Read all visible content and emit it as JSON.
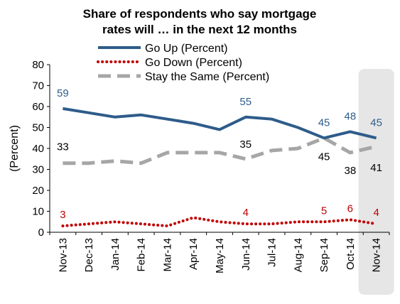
{
  "chart_data": {
    "type": "line",
    "title_lines": [
      "Share of respondents who say mortgage",
      "rates will … in the next 12 months"
    ],
    "ylabel": "(Percent)",
    "ylim": [
      0,
      80
    ],
    "yticks": [
      0,
      10,
      20,
      30,
      40,
      50,
      60,
      70,
      80
    ],
    "categories": [
      "Nov-13",
      "Dec-13",
      "Jan-14",
      "Feb-14",
      "Mar-14",
      "Apr-14",
      "May-14",
      "Jun-14",
      "Jul-14",
      "Aug-14",
      "Sep-14",
      "Oct-14",
      "Nov-14"
    ],
    "highlight_category": "Nov-14",
    "legend_position": "top-left",
    "grid": false,
    "series": [
      {
        "name": "Go Up (Percent)",
        "color": "#2E5C8A",
        "style": "solid",
        "values": [
          59,
          57,
          55,
          56,
          54,
          52,
          49,
          55,
          54,
          50,
          45,
          48,
          45
        ],
        "data_labels": [
          {
            "i": 0,
            "text": "59"
          },
          {
            "i": 7,
            "text": "55"
          },
          {
            "i": 10,
            "text": "45"
          },
          {
            "i": 11,
            "text": "48"
          },
          {
            "i": 12,
            "text": "45"
          }
        ]
      },
      {
        "name": "Go Down (Percent)",
        "color": "#C00000",
        "style": "dotted",
        "values": [
          3,
          4,
          5,
          4,
          3,
          7,
          5,
          4,
          4,
          5,
          5,
          6,
          4
        ],
        "data_labels": [
          {
            "i": 0,
            "text": "3"
          },
          {
            "i": 7,
            "text": "4"
          },
          {
            "i": 10,
            "text": "5"
          },
          {
            "i": 11,
            "text": "6"
          },
          {
            "i": 12,
            "text": "4"
          }
        ]
      },
      {
        "name": "Stay the Same (Percent)",
        "color": "#A6A6A6",
        "style": "dashed",
        "values": [
          33,
          33,
          34,
          33,
          38,
          38,
          38,
          35,
          39,
          40,
          45,
          38,
          41
        ],
        "data_labels": [
          {
            "i": 0,
            "text": "33"
          },
          {
            "i": 7,
            "text": "35"
          },
          {
            "i": 10,
            "text": "45"
          },
          {
            "i": 11,
            "text": "38"
          },
          {
            "i": 12,
            "text": "41"
          }
        ]
      }
    ]
  }
}
